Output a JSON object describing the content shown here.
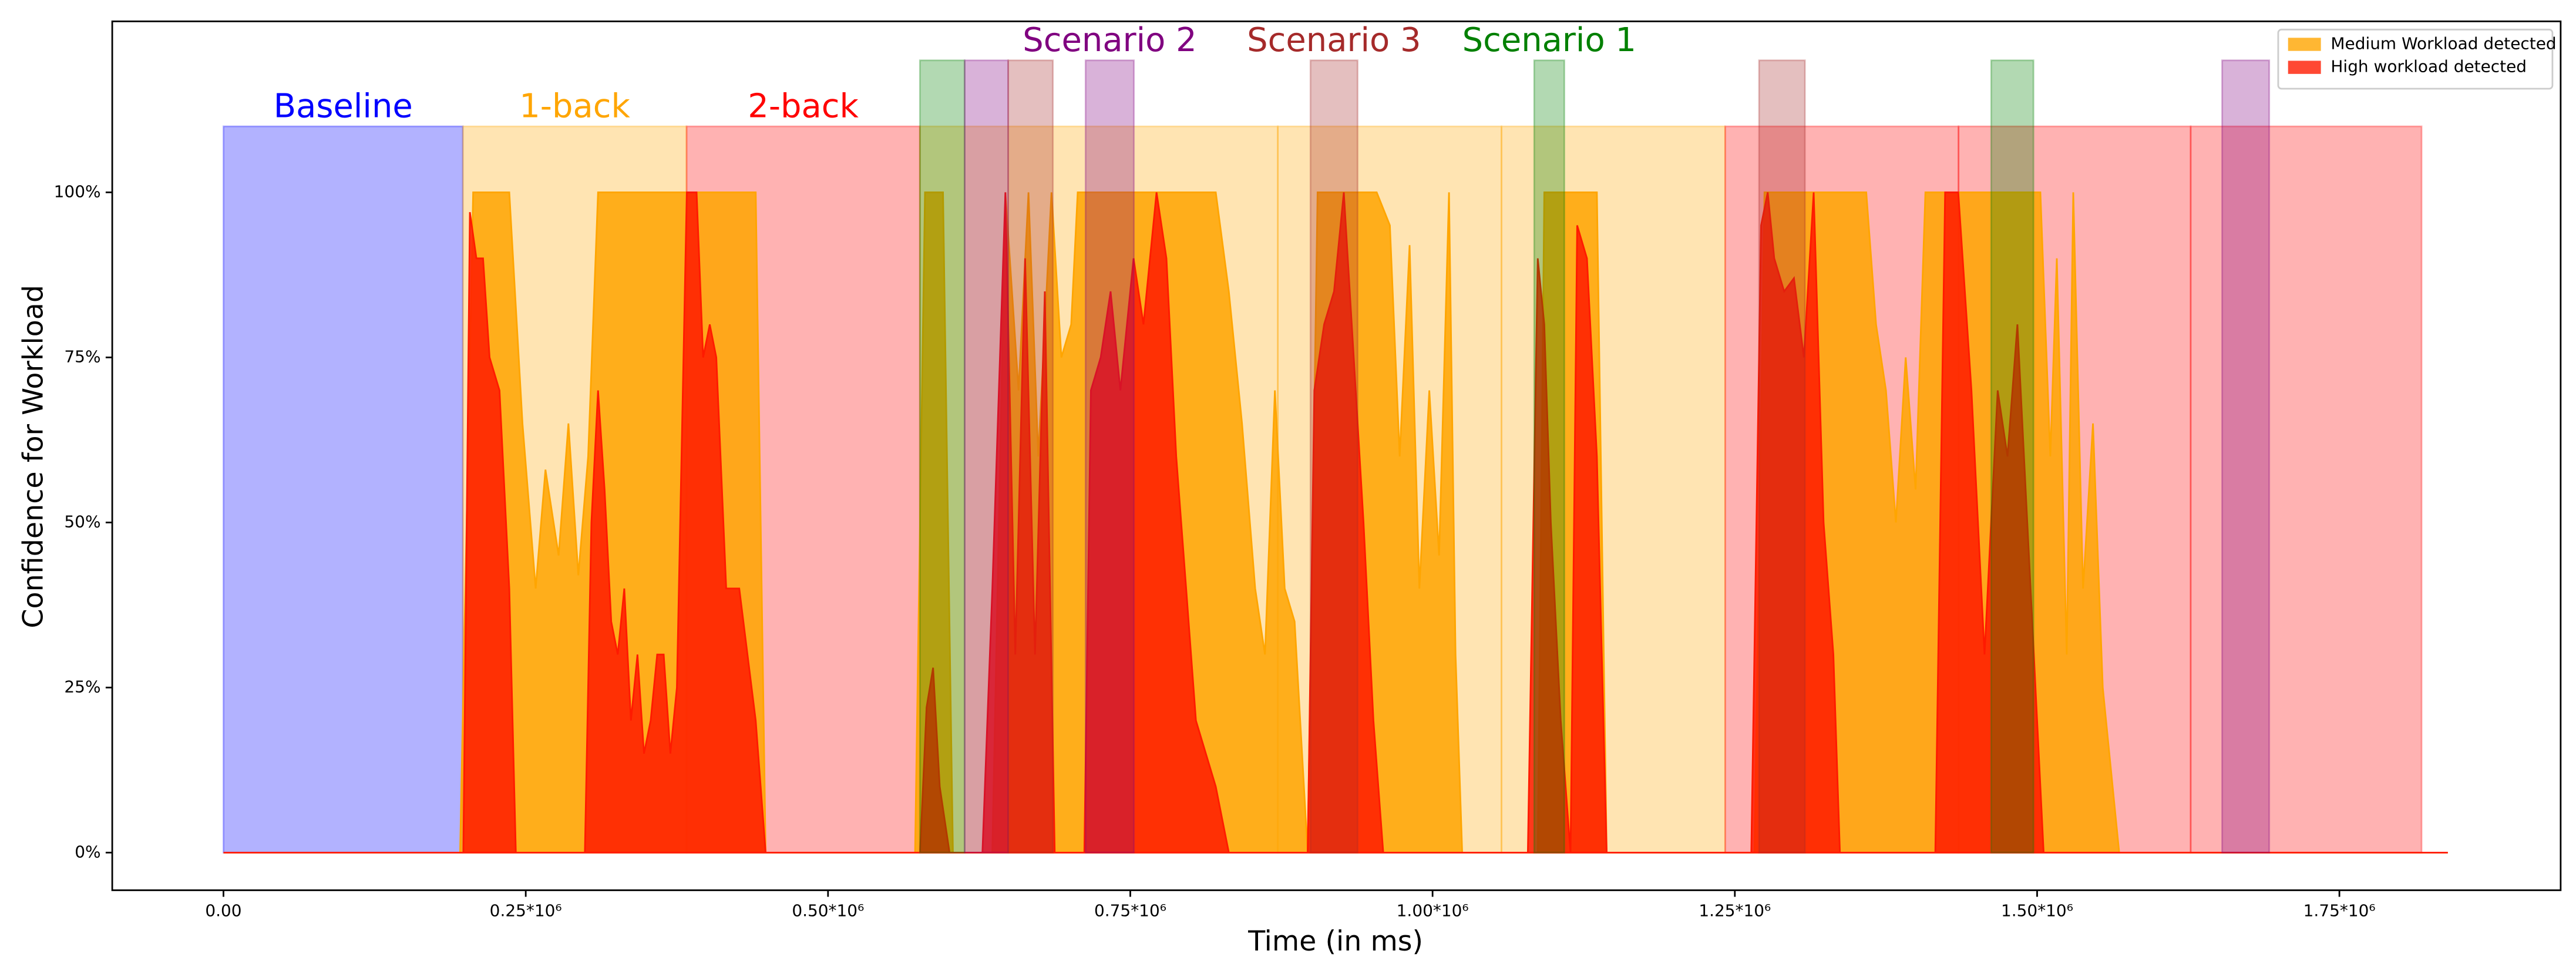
{
  "chart_data": {
    "type": "area",
    "xlabel": "Time (in ms)",
    "ylabel": "Confidence for Workload",
    "xlim": [
      -92000,
      1933000
    ],
    "ylim": [
      -5.7,
      125.9
    ],
    "xticks": [
      {
        "value": 0,
        "label": "0.00"
      },
      {
        "value": 250000,
        "label": "0.25*10⁶"
      },
      {
        "value": 500000,
        "label": "0.50*10⁶"
      },
      {
        "value": 750000,
        "label": "0.75*10⁶"
      },
      {
        "value": 1000000,
        "label": "1.00*10⁶"
      },
      {
        "value": 1250000,
        "label": "1.25*10⁶"
      },
      {
        "value": 1500000,
        "label": "1.50*10⁶"
      },
      {
        "value": 1750000,
        "label": "1.75*10⁶"
      }
    ],
    "yticks": [
      {
        "value": 0,
        "label": "0%"
      },
      {
        "value": 25,
        "label": "25%"
      },
      {
        "value": 50,
        "label": "50%"
      },
      {
        "value": 75,
        "label": "75%"
      },
      {
        "value": 100,
        "label": "100%"
      }
    ],
    "legend": "upper right",
    "regions": [
      {
        "x0": 0,
        "x1": 198000,
        "height": 110,
        "color": "blue",
        "label": "Baseline"
      },
      {
        "x0": 198000,
        "x1": 383000,
        "height": 110,
        "color": "orange",
        "label": "1-back"
      },
      {
        "x0": 383000,
        "x1": 576000,
        "height": 110,
        "color": "red",
        "label": "2-back"
      },
      {
        "x0": 576000,
        "x1": 872000,
        "height": 110,
        "color": "orange"
      },
      {
        "x0": 872000,
        "x1": 1057000,
        "height": 110,
        "color": "orange"
      },
      {
        "x0": 1057000,
        "x1": 1242000,
        "height": 110,
        "color": "orange"
      },
      {
        "x0": 1242000,
        "x1": 1435000,
        "height": 110,
        "color": "red"
      },
      {
        "x0": 1435000,
        "x1": 1627000,
        "height": 110,
        "color": "red"
      },
      {
        "x0": 1627000,
        "x1": 1818000,
        "height": 110,
        "color": "red"
      }
    ],
    "markers": [
      {
        "x0": 576000,
        "x1": 613000,
        "height": 120,
        "color": "green"
      },
      {
        "x0": 613000,
        "x1": 649000,
        "height": 120,
        "color": "purple"
      },
      {
        "x0": 649000,
        "x1": 686000,
        "height": 120,
        "color": "brown"
      },
      {
        "x0": 713000,
        "x1": 753000,
        "height": 120,
        "color": "purple",
        "label": "Scenario 2"
      },
      {
        "x0": 899000,
        "x1": 938000,
        "height": 120,
        "color": "brown",
        "label": "Scenario 3"
      },
      {
        "x0": 1084000,
        "x1": 1109000,
        "height": 120,
        "color": "green",
        "label": "Scenario 1"
      },
      {
        "x0": 1270000,
        "x1": 1308000,
        "height": 120,
        "color": "brown"
      },
      {
        "x0": 1462000,
        "x1": 1497000,
        "height": 120,
        "color": "green"
      },
      {
        "x0": 1653000,
        "x1": 1692000,
        "height": 120,
        "color": "purple"
      }
    ],
    "series": [
      {
        "name": "Medium Workload detected",
        "color": "#ffa500",
        "x": [
          0,
          195700,
          206500,
          236400,
          247300,
          258200,
          266300,
          277200,
          285300,
          293500,
          301600,
          309800,
          440200,
          448400,
          572000,
          580200,
          595100,
          603300,
          635900,
          646700,
          657600,
          665800,
          673900,
          684800,
          693000,
          701100,
          706500,
          820700,
          831500,
          842400,
          853300,
          861400,
          869600,
          877700,
          885900,
          896700,
          904900,
          953800,
          964700,
          972800,
          981000,
          989100,
          997300,
          1005400,
          1013600,
          1019000,
          1024500,
          1087000,
          1092400,
          1135900,
          1144000,
          1266300,
          1274500,
          1358700,
          1366800,
          1375000,
          1383200,
          1391300,
          1399500,
          1407600,
          1502700,
          1510900,
          1516300,
          1524500,
          1529900,
          1538000,
          1546200,
          1554300,
          1567900,
          1839700
        ],
        "values": [
          0,
          0,
          100,
          100,
          65,
          40,
          58,
          45,
          65,
          42,
          60,
          100,
          100,
          0,
          0,
          100,
          100,
          0,
          0,
          100,
          70,
          100,
          60,
          100,
          75,
          80,
          100,
          100,
          85,
          65,
          40,
          30,
          70,
          40,
          35,
          0,
          100,
          100,
          95,
          60,
          92,
          40,
          70,
          45,
          100,
          30,
          0,
          0,
          100,
          100,
          0,
          0,
          100,
          100,
          80,
          70,
          50,
          75,
          55,
          100,
          100,
          60,
          90,
          30,
          100,
          40,
          65,
          25,
          0,
          0
        ]
      },
      {
        "name": "High workload detected",
        "color": "#ff1a00",
        "x": [
          0,
          198400,
          203800,
          209200,
          214700,
          220100,
          228300,
          236400,
          241800,
          298900,
          304300,
          309800,
          315200,
          320700,
          326100,
          331500,
          337000,
          342400,
          347800,
          353300,
          358700,
          364100,
          369600,
          375000,
          383200,
          391300,
          396700,
          402200,
          407600,
          415800,
          426600,
          440200,
          448400,
          576100,
          581500,
          586900,
          592400,
          600500,
          627700,
          635900,
          646700,
          654900,
          663000,
          671200,
          679300,
          687500,
          712000,
          717400,
          725500,
          733700,
          741800,
          752700,
          760900,
          771700,
          779900,
          788000,
          796200,
          804300,
          820700,
          831500,
          896700,
          902200,
          910300,
          918500,
          926600,
          934800,
          942900,
          951100,
          959200,
          1078800,
          1087000,
          1092400,
          1097800,
          1106000,
          1114100,
          1119600,
          1127700,
          1135900,
          1144000,
          1263600,
          1271700,
          1277200,
          1282600,
          1290800,
          1298900,
          1307100,
          1315200,
          1323400,
          1331500,
          1336900,
          1415800,
          1423900,
          1434800,
          1445700,
          1456500,
          1467400,
          1475500,
          1483700,
          1494600,
          1505400,
          1839700
        ],
        "values": [
          0,
          0,
          97,
          90,
          90,
          75,
          70,
          40,
          0,
          0,
          50,
          70,
          55,
          35,
          30,
          40,
          20,
          30,
          15,
          20,
          30,
          30,
          15,
          25,
          100,
          100,
          75,
          80,
          75,
          40,
          40,
          20,
          0,
          0,
          22,
          28,
          10,
          0,
          0,
          40,
          100,
          30,
          90,
          30,
          85,
          0,
          0,
          70,
          75,
          85,
          70,
          90,
          80,
          100,
          90,
          60,
          40,
          20,
          10,
          0,
          0,
          70,
          80,
          85,
          100,
          75,
          50,
          20,
          0,
          0,
          90,
          80,
          50,
          20,
          0,
          95,
          90,
          60,
          0,
          0,
          95,
          100,
          90,
          85,
          87,
          75,
          100,
          50,
          30,
          0,
          0,
          100,
          100,
          70,
          30,
          70,
          60,
          80,
          40,
          0,
          0
        ]
      }
    ]
  }
}
